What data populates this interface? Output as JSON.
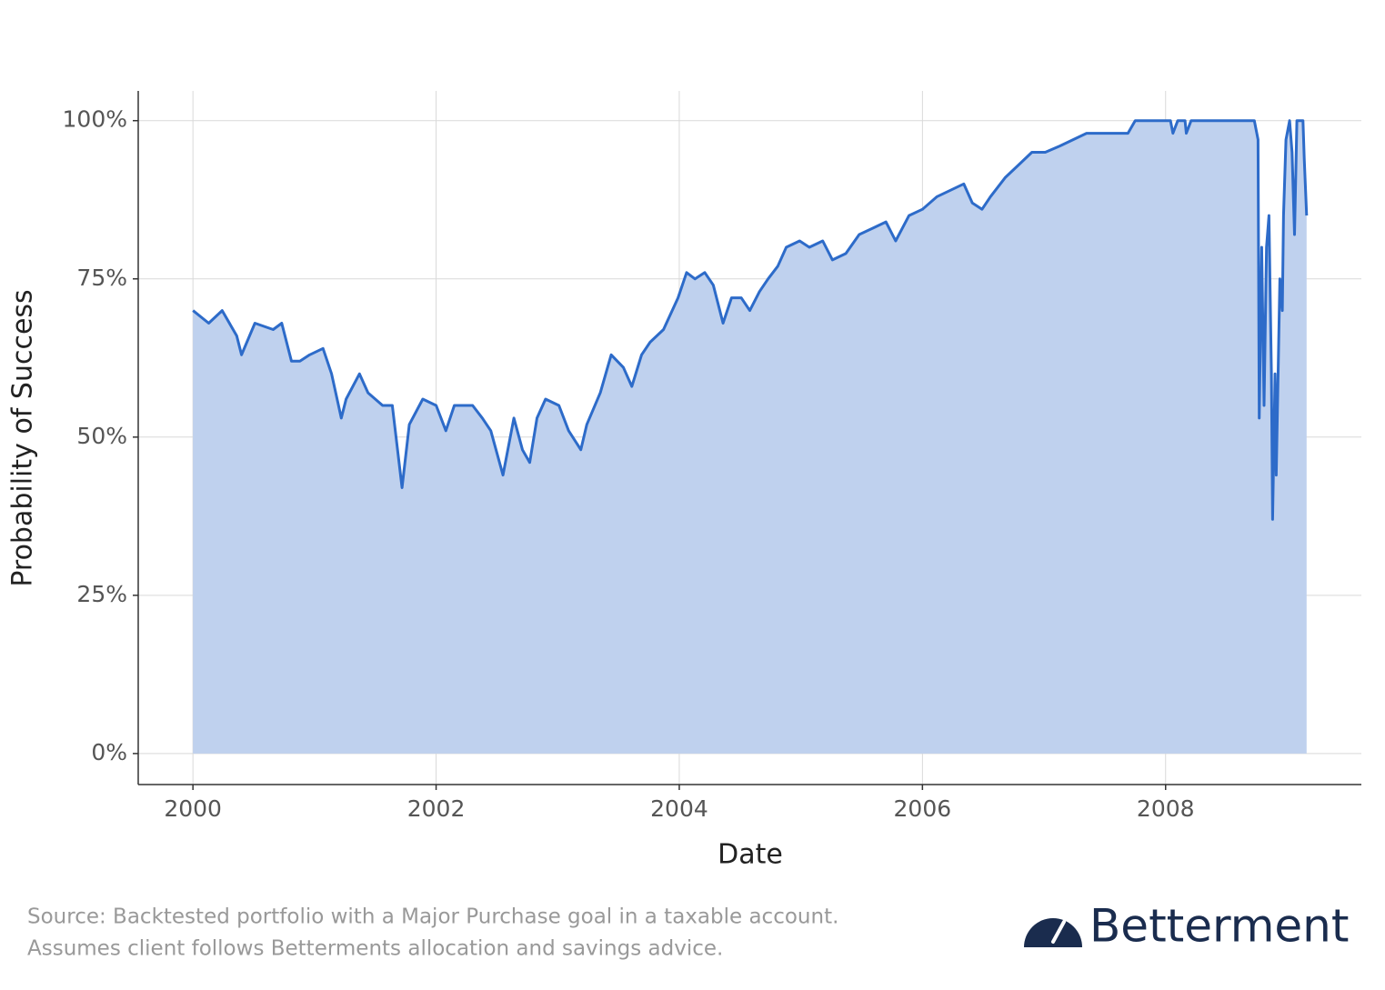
{
  "chart_data": {
    "type": "area",
    "xlabel": "Date",
    "ylabel": "Probability of Success",
    "annotations": [
      "Source: Backtested portfolio with a Major Purchase goal in a taxable account.",
      "Assumes client follows Betterments allocation and savings advice."
    ],
    "logo": "Betterment",
    "x": [
      2000.0,
      2000.13,
      2000.24,
      2000.36,
      2000.4,
      2000.51,
      2000.66,
      2000.73,
      2000.81,
      2000.88,
      2000.96,
      2001.07,
      2001.14,
      2001.22,
      2001.26,
      2001.37,
      2001.44,
      2001.56,
      2001.64,
      2001.72,
      2001.78,
      2001.89,
      2002.0,
      2002.08,
      2002.15,
      2002.23,
      2002.3,
      2002.38,
      2002.45,
      2002.55,
      2002.64,
      2002.71,
      2002.77,
      2002.83,
      2002.9,
      2003.01,
      2003.09,
      2003.19,
      2003.24,
      2003.35,
      2003.44,
      2003.54,
      2003.61,
      2003.69,
      2003.76,
      2003.87,
      2003.99,
      2004.06,
      2004.13,
      2004.21,
      2004.28,
      2004.36,
      2004.43,
      2004.51,
      2004.58,
      2004.66,
      2004.73,
      2004.81,
      2004.88,
      2004.99,
      2005.07,
      2005.18,
      2005.26,
      2005.37,
      2005.48,
      2005.59,
      2005.7,
      2005.78,
      2005.89,
      2006.0,
      2006.12,
      2006.23,
      2006.34,
      2006.41,
      2006.49,
      2006.56,
      2006.68,
      2006.79,
      2006.9,
      2007.01,
      2007.13,
      2007.24,
      2007.35,
      2007.46,
      2007.57,
      2007.69,
      2007.75,
      2008.04,
      2008.06,
      2008.1,
      2008.16,
      2008.17,
      2008.21,
      2008.73,
      2008.76,
      2008.77,
      2008.79,
      2008.81,
      2008.83,
      2008.85,
      2008.87,
      2008.88,
      2008.9,
      2008.91,
      2008.93,
      2008.94,
      2008.96,
      2008.97,
      2008.99,
      2009.02,
      2009.04,
      2009.06,
      2009.08,
      2009.13,
      2009.14,
      2009.16
    ],
    "series": [
      {
        "name": "Probability of Success",
        "color": "#2d6bc9",
        "fill": "#bfd1ee",
        "values": [
          70,
          68,
          70,
          66,
          63,
          68,
          67,
          68,
          62,
          62,
          63,
          64,
          60,
          53,
          56,
          60,
          57,
          55,
          55,
          42,
          52,
          56,
          55,
          51,
          55,
          55,
          55,
          53,
          51,
          44,
          53,
          48,
          46,
          53,
          56,
          55,
          51,
          48,
          52,
          57,
          63,
          61,
          58,
          63,
          65,
          67,
          72,
          76,
          75,
          76,
          74,
          68,
          72,
          72,
          70,
          73,
          75,
          77,
          80,
          81,
          80,
          81,
          78,
          79,
          82,
          83,
          84,
          81,
          85,
          86,
          88,
          89,
          90,
          87,
          86,
          88,
          91,
          93,
          95,
          95,
          96,
          97,
          98,
          98,
          98,
          98,
          100,
          100,
          98,
          100,
          100,
          98,
          100,
          100,
          97,
          53,
          80,
          55,
          80,
          85,
          60,
          37,
          60,
          44,
          65,
          75,
          70,
          85,
          97,
          100,
          95,
          82,
          100,
          100,
          94,
          85
        ]
      }
    ],
    "xlim": [
      1999.55,
      2009.61
    ],
    "xticks": [
      2000,
      2002,
      2004,
      2006,
      2008
    ],
    "ylim": [
      -4.9,
      104.7
    ],
    "yticks": [
      {
        "value": 0,
        "label": "0%"
      },
      {
        "value": 25,
        "label": "25%"
      },
      {
        "value": 50,
        "label": "50%"
      },
      {
        "value": 75,
        "label": "75%"
      },
      {
        "value": 100,
        "label": "100%"
      }
    ],
    "grid": true
  }
}
